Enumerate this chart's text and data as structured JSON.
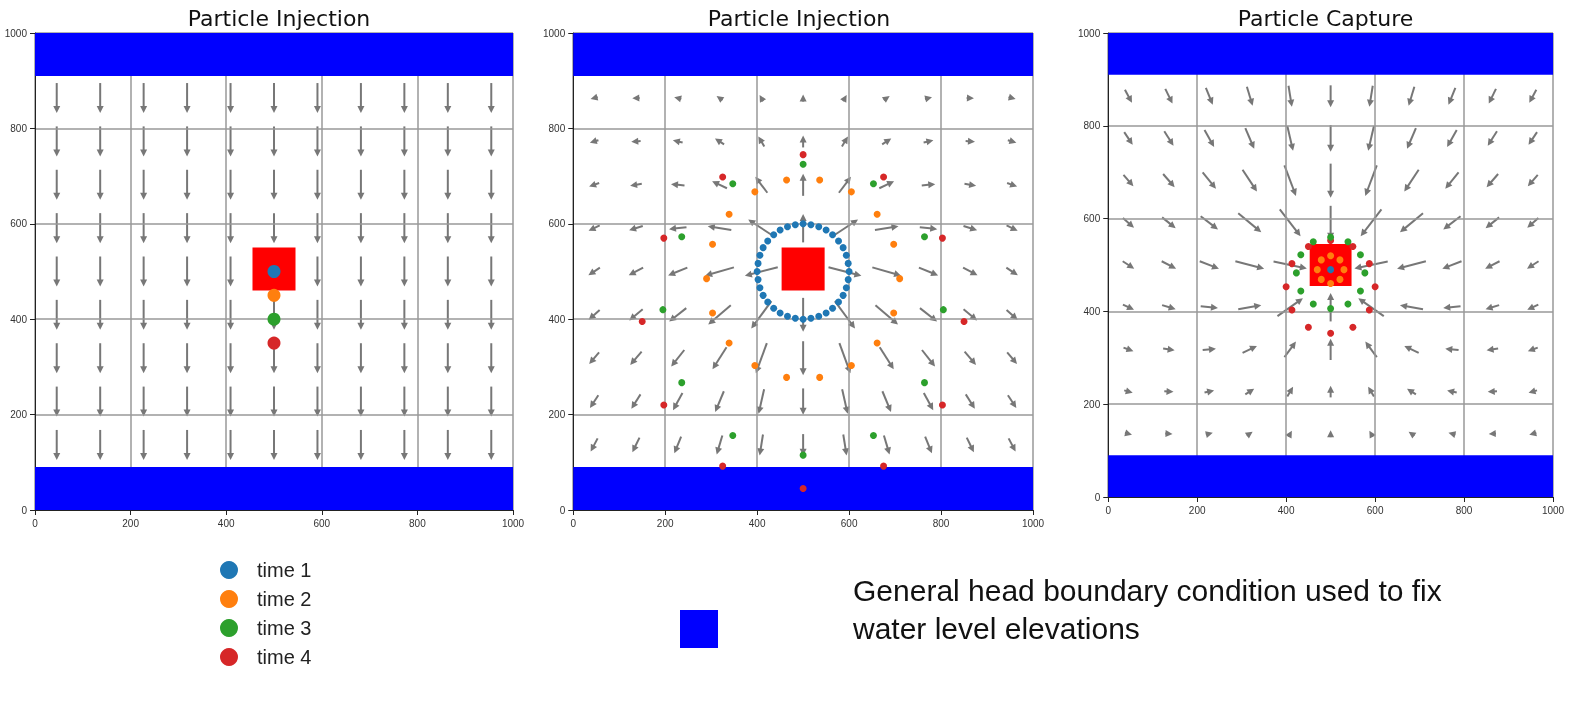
{
  "chart_data": [
    {
      "type": "scatter",
      "title": "Particle Injection",
      "xlim": [
        0,
        1000
      ],
      "ylim": [
        0,
        1000
      ],
      "xticks": [
        0,
        200,
        400,
        600,
        800,
        1000
      ],
      "yticks": [
        0,
        200,
        400,
        600,
        800,
        1000
      ],
      "grid": true,
      "marker": "circle",
      "legend": "bottom",
      "bands": [
        {
          "axis": "y",
          "from": 0,
          "to": 90,
          "color": "#0000ff"
        },
        {
          "axis": "y",
          "from": 910,
          "to": 1000,
          "color": "#0000ff"
        }
      ],
      "series": [
        {
          "type": "scatter",
          "marker": "square",
          "color": "#ff0000",
          "x": [
            500
          ],
          "values": [
            505
          ]
        },
        {
          "name": "time 1",
          "color": "#1f77b4",
          "x": [
            500
          ],
          "values": [
            500
          ]
        },
        {
          "name": "time 2",
          "color": "#ff7f0e",
          "x": [
            500
          ],
          "values": [
            450
          ]
        },
        {
          "name": "time 3",
          "color": "#2ca02c",
          "x": [
            500
          ],
          "values": [
            400
          ]
        },
        {
          "name": "time 4",
          "color": "#d62728",
          "x": [
            500
          ],
          "values": [
            350
          ]
        }
      ]
    },
    {
      "type": "scatter",
      "title": "Particle Injection",
      "xlim": [
        0,
        1000
      ],
      "ylim": [
        0,
        1000
      ],
      "xticks": [
        0,
        200,
        400,
        600,
        800,
        1000
      ],
      "yticks": [
        0,
        200,
        400,
        600,
        800,
        1000
      ],
      "grid": true,
      "marker": "circle",
      "annotations": [
        "General head boundary condition used to fix water level elevations"
      ],
      "bands": [
        {
          "axis": "y",
          "from": 0,
          "to": 90,
          "color": "#0000ff"
        },
        {
          "axis": "y",
          "from": 910,
          "to": 1000,
          "color": "#0000ff"
        }
      ],
      "series": [
        {
          "type": "scatter",
          "marker": "square",
          "color": "#ff0000",
          "x": [
            500
          ],
          "values": [
            505
          ]
        },
        {
          "color": "#1f77b4",
          "x": [
            600,
            598,
            594,
            587,
            577,
            564,
            550,
            534,
            517,
            500,
            483,
            466,
            450,
            436,
            423,
            413,
            406,
            402,
            400,
            402,
            406,
            413,
            423,
            436,
            450,
            466,
            483,
            500,
            517,
            534,
            550,
            564,
            577,
            587,
            594,
            598
          ],
          "values": [
            500,
            517,
            534,
            550,
            564,
            577,
            587,
            594,
            598,
            600,
            598,
            594,
            587,
            577,
            564,
            550,
            534,
            517,
            500,
            483,
            466,
            450,
            436,
            423,
            413,
            406,
            402,
            400,
            402,
            406,
            413,
            423,
            436,
            450,
            466,
            483
          ]
        },
        {
          "color": "#ff7f0e",
          "x": [
            710,
            697,
            661,
            605,
            536,
            464,
            395,
            339,
            303,
            290,
            303,
            339,
            395,
            464,
            536,
            605,
            661,
            697
          ],
          "values": [
            485,
            557,
            620,
            667,
            692,
            692,
            667,
            620,
            557,
            485,
            413,
            350,
            303,
            278,
            278,
            303,
            350,
            413
          ]
        },
        {
          "color": "#2ca02c",
          "x": [
            805,
            764,
            653,
            500,
            347,
            236,
            195,
            236,
            347,
            500,
            653,
            764
          ],
          "values": [
            420,
            573,
            684,
            725,
            684,
            573,
            420,
            267,
            156,
            115,
            156,
            267
          ]
        },
        {
          "color": "#d62728",
          "x": [
            850,
            803,
            675,
            500,
            325,
            197,
            150,
            197,
            325,
            500,
            675,
            803
          ],
          "values": [
            395,
            570,
            698,
            745,
            698,
            570,
            395,
            220,
            92,
            45,
            92,
            220
          ]
        }
      ]
    },
    {
      "type": "scatter",
      "title": "Particle Capture",
      "xlim": [
        0,
        1000
      ],
      "ylim": [
        0,
        1000
      ],
      "xticks": [
        0,
        200,
        400,
        600,
        800,
        1000
      ],
      "yticks": [
        0,
        200,
        400,
        600,
        800,
        1000
      ],
      "grid": true,
      "marker": "circle",
      "bands": [
        {
          "axis": "y",
          "from": 0,
          "to": 90,
          "color": "#0000ff"
        },
        {
          "axis": "y",
          "from": 910,
          "to": 1000,
          "color": "#0000ff"
        }
      ],
      "series": [
        {
          "type": "scatter",
          "marker": "square",
          "color": "#ff0000",
          "x": [
            500
          ],
          "values": [
            500
          ]
        },
        {
          "color": "#d62728",
          "x": [
            600,
            587,
            550,
            500,
            450,
            413,
            400,
            413,
            450,
            500,
            550,
            587
          ],
          "values": [
            453,
            503,
            540,
            553,
            540,
            503,
            453,
            403,
            366,
            353,
            366,
            403
          ]
        },
        {
          "color": "#2ca02c",
          "x": [
            577,
            567,
            539,
            500,
            461,
            433,
            423,
            433,
            461,
            500,
            539,
            567
          ],
          "values": [
            483,
            522,
            550,
            560,
            550,
            522,
            483,
            444,
            416,
            406,
            416,
            444
          ]
        },
        {
          "color": "#ff7f0e",
          "x": [
            530,
            521,
            500,
            479,
            470,
            479,
            500,
            521
          ],
          "values": [
            490,
            511,
            520,
            511,
            490,
            469,
            460,
            469
          ]
        },
        {
          "color": "#1f77b4",
          "x": [
            500
          ],
          "values": [
            490
          ]
        }
      ]
    }
  ]
}
